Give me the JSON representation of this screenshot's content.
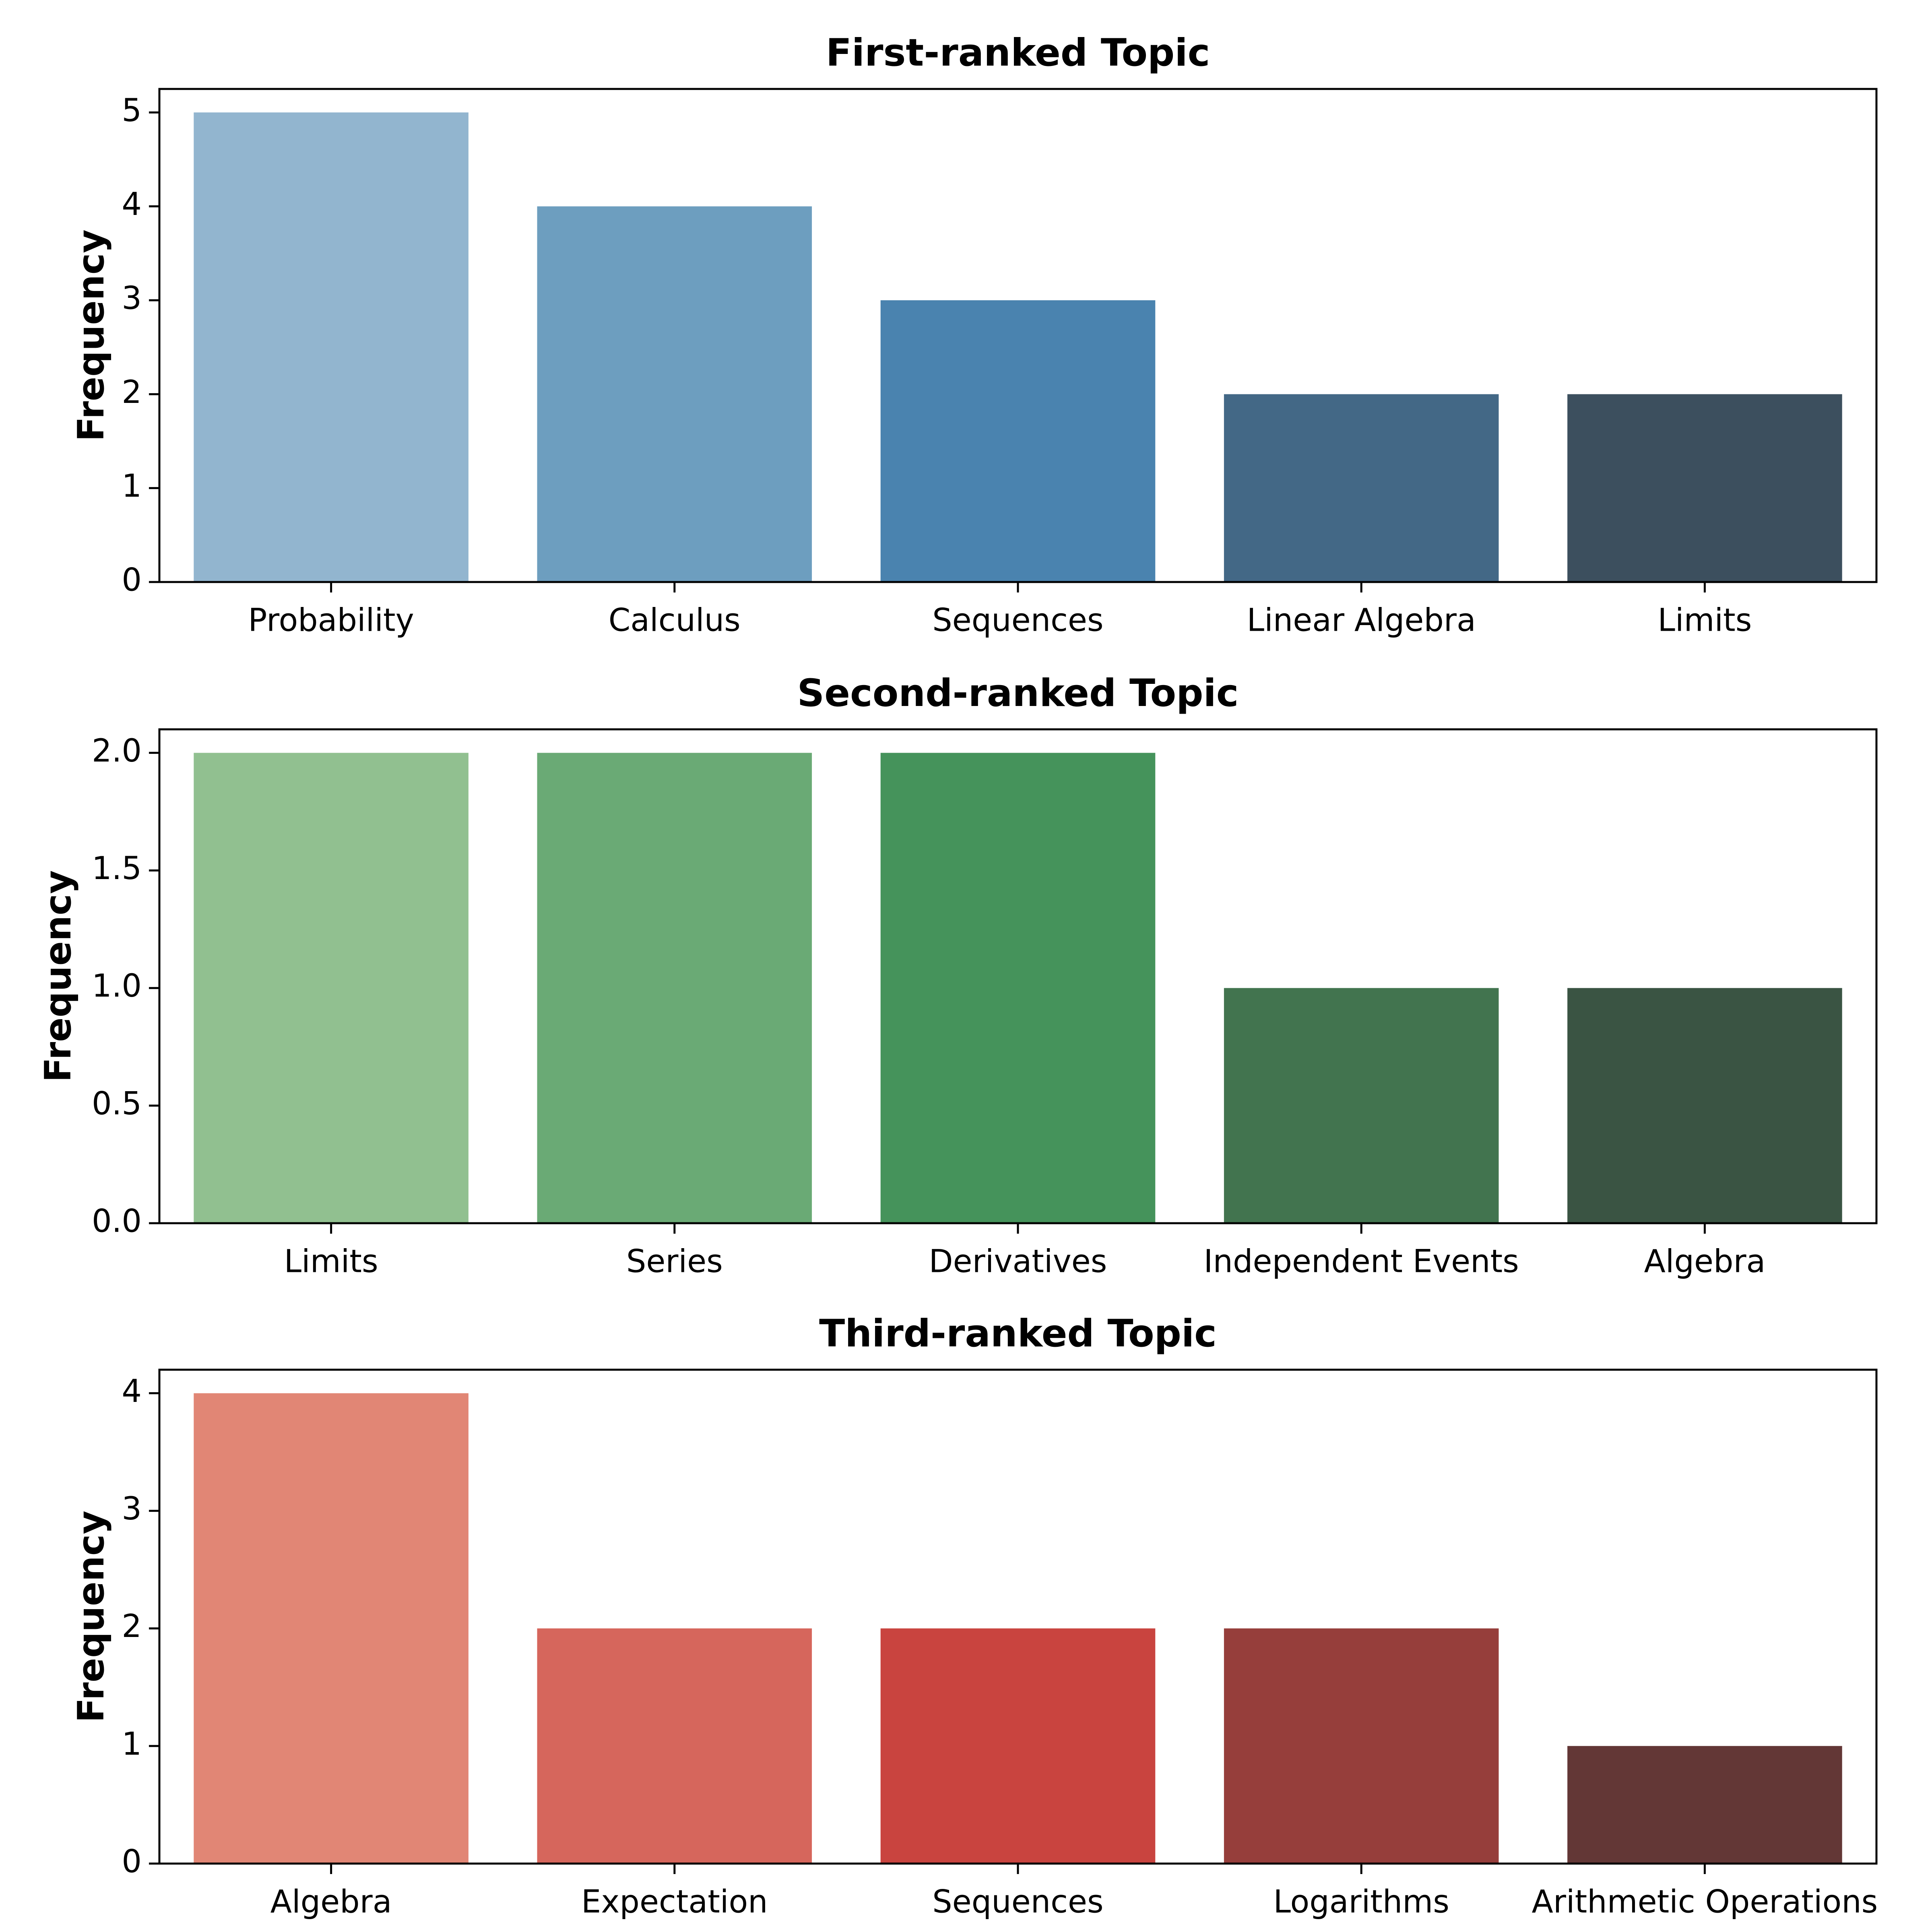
{
  "chart_data": [
    {
      "type": "bar",
      "title": "First-ranked Topic",
      "xlabel": "",
      "ylabel": "Frequency",
      "categories": [
        "Probability",
        "Calculus",
        "Sequences",
        "Linear Algebra",
        "Limits"
      ],
      "values": [
        5,
        4,
        3,
        2,
        2
      ],
      "colors": [
        "#92b5cf",
        "#6d9ebf",
        "#4a83af",
        "#436886",
        "#3c4f5e"
      ],
      "ylim": [
        0,
        5.25
      ],
      "yticks": [
        0,
        1,
        2,
        3,
        4,
        5
      ],
      "ytick_labels": [
        "0",
        "1",
        "2",
        "3",
        "4",
        "5"
      ],
      "grid": false
    },
    {
      "type": "bar",
      "title": "Second-ranked Topic",
      "xlabel": "",
      "ylabel": "Frequency",
      "categories": [
        "Limits",
        "Series",
        "Derivatives",
        "Independent Events",
        "Algebra"
      ],
      "values": [
        2,
        2,
        2,
        1,
        1
      ],
      "colors": [
        "#91c090",
        "#6aaa75",
        "#45935b",
        "#42744f",
        "#3a5443"
      ],
      "ylim": [
        0,
        2.1
      ],
      "yticks": [
        0,
        0.5,
        1,
        1.5,
        2
      ],
      "ytick_labels": [
        "0.0",
        "0.5",
        "1.0",
        "1.5",
        "2.0"
      ],
      "grid": false
    },
    {
      "type": "bar",
      "title": "Third-ranked Topic",
      "xlabel": "",
      "ylabel": "Frequency",
      "categories": [
        "Algebra",
        "Expectation",
        "Sequences",
        "Logarithms",
        "Arithmetic Operations"
      ],
      "values": [
        4,
        2,
        2,
        2,
        1
      ],
      "colors": [
        "#e18675",
        "#d6665c",
        "#c9443f",
        "#963e3b",
        "#633736"
      ],
      "ylim": [
        0,
        4.2
      ],
      "yticks": [
        0,
        1,
        2,
        3,
        4
      ],
      "ytick_labels": [
        "0",
        "1",
        "2",
        "3",
        "4"
      ],
      "grid": false
    }
  ]
}
